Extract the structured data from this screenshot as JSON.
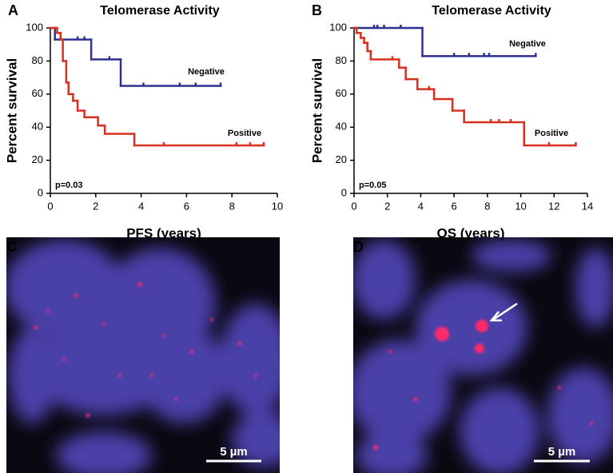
{
  "chart_data": [
    {
      "type": "survival",
      "panel_label": "A",
      "title": "Telomerase Activity",
      "xlabel": "PFS (years)",
      "ylabel": "Percent survival",
      "annotation": "p=0.03",
      "xlim": [
        0,
        10
      ],
      "xticks": [
        0,
        2,
        4,
        6,
        8,
        10
      ],
      "ylim": [
        0,
        100
      ],
      "yticks": [
        0,
        20,
        40,
        60,
        80,
        100
      ],
      "series": [
        {
          "name": "Negative",
          "color": "#2e3192",
          "x": [
            0,
            0.2,
            1.8,
            3.1,
            7.5
          ],
          "values": [
            100,
            93,
            81,
            65,
            65
          ],
          "censored": [
            1.2,
            1.5,
            2.6,
            4.1,
            5.7,
            6.4
          ]
        },
        {
          "name": "Positive",
          "color": "#d7301f",
          "x": [
            0,
            0.3,
            0.45,
            0.55,
            0.7,
            0.8,
            1.0,
            1.2,
            1.5,
            2.1,
            2.4,
            3.7,
            9.4
          ],
          "values": [
            100,
            97,
            93,
            80,
            67,
            60,
            56,
            50,
            46,
            41,
            36,
            29,
            29
          ],
          "censored": [
            5.0,
            8.2,
            8.8
          ]
        }
      ]
    },
    {
      "type": "survival",
      "panel_label": "B",
      "title": "Telomerase Activity",
      "xlabel": "OS (years)",
      "ylabel": "Percent survival",
      "annotation": "p=0.05",
      "xlim": [
        0,
        14
      ],
      "xticks": [
        0,
        2,
        4,
        6,
        8,
        10,
        12,
        14
      ],
      "ylim": [
        0,
        100
      ],
      "yticks": [
        0,
        20,
        40,
        60,
        80,
        100
      ],
      "series": [
        {
          "name": "Negative",
          "color": "#2e3192",
          "x": [
            0,
            4.1,
            10.9
          ],
          "values": [
            100,
            83,
            83
          ],
          "censored": [
            1.2,
            1.4,
            1.8,
            2.8,
            6.0,
            6.9,
            7.8,
            8.1
          ]
        },
        {
          "name": "Positive",
          "color": "#d7301f",
          "x": [
            0,
            0.15,
            0.4,
            0.6,
            0.8,
            1.0,
            2.7,
            3.1,
            3.8,
            4.8,
            5.9,
            6.6,
            10.2,
            13.3
          ],
          "values": [
            100,
            97,
            94,
            91,
            86,
            81,
            76,
            69,
            63,
            57,
            50,
            43,
            29,
            29
          ],
          "censored": [
            2.3,
            4.5,
            8.2,
            8.7,
            9.4,
            11.7
          ]
        }
      ]
    }
  ],
  "images": [
    {
      "panel_label": "C",
      "scale_bar": "5 µm"
    },
    {
      "panel_label": "D",
      "scale_bar": "5 µm"
    }
  ]
}
